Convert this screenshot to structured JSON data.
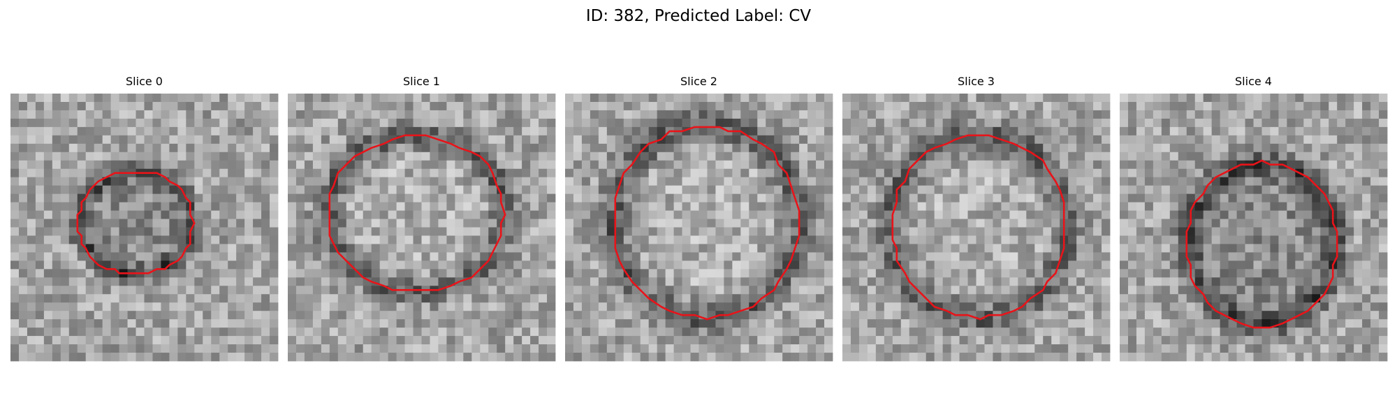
{
  "title": "ID: 382, Predicted Label: CV",
  "panels": [
    {
      "title": "Slice 0"
    },
    {
      "title": "Slice 1"
    },
    {
      "title": "Slice 2"
    },
    {
      "title": "Slice 3"
    },
    {
      "title": "Slice 4"
    }
  ]
}
